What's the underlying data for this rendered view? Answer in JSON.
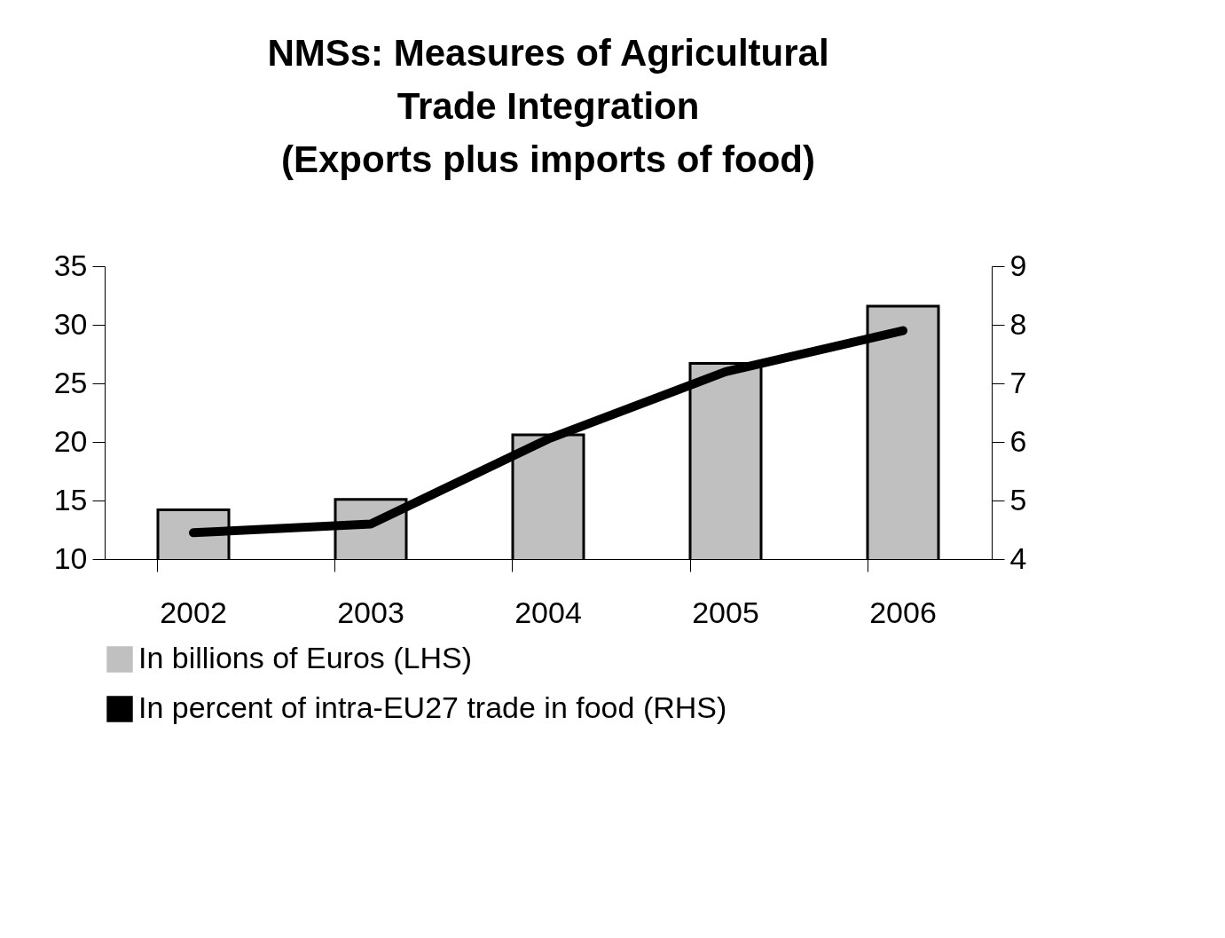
{
  "chart_data": {
    "type": "bar",
    "title": "NMSs: Measures of Agricultural Trade Integration (Exports plus imports of food)",
    "categories": [
      "2002",
      "2003",
      "2004",
      "2005",
      "2006"
    ],
    "series": [
      {
        "name": "In billions of Euros (LHS)",
        "color": "#c0c0c0",
        "values": [
          14.2,
          15.1,
          20.6,
          26.7,
          31.6
        ]
      },
      {
        "name": "In percent of intra-EU27 trade in food (RHS)",
        "type": "line",
        "axis": "y2",
        "color": "#000000",
        "values": [
          4.45,
          4.6,
          6.05,
          7.2,
          7.9
        ]
      }
    ],
    "ylim": [
      10,
      35
    ],
    "yticks": [
      10,
      15,
      20,
      25,
      30,
      35
    ],
    "y2lim": [
      4,
      9
    ],
    "y2ticks": [
      4,
      5,
      6,
      7,
      8,
      9
    ],
    "grid": false,
    "legend": "bottom",
    "line_style": "solid"
  }
}
